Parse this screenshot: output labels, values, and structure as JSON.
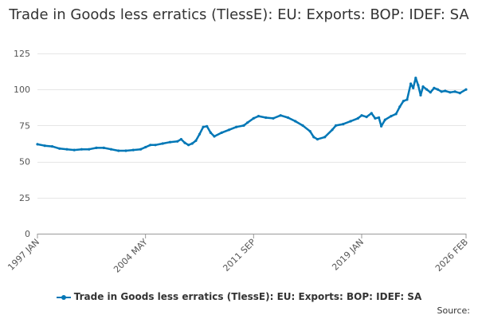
{
  "chart_data": {
    "type": "line",
    "title": "Trade in Goods less erratics (TlessE): EU: Exports: BOP: IDEF: SA",
    "xlabel": "",
    "ylabel": "",
    "x_range": [
      "1997 JAN",
      "2026 FEB"
    ],
    "x_ticks": [
      "1997 JAN",
      "2004 MAY",
      "2011 SEP",
      "2019 JAN",
      "2026 FEB"
    ],
    "ylim": [
      0,
      125
    ],
    "y_ticks": [
      "0",
      "25",
      "50",
      "75",
      "100",
      "125"
    ],
    "grid": true,
    "legend_position": "bottom",
    "series": [
      {
        "name": "Trade in Goods less erratics (TlessE): EU: Exports: BOP: IDEF: SA",
        "color": "#0077b6",
        "points": [
          [
            "1997-01",
            62
          ],
          [
            "1997-07",
            61
          ],
          [
            "1998-01",
            60.5
          ],
          [
            "1998-07",
            59
          ],
          [
            "1999-01",
            58.5
          ],
          [
            "1999-07",
            58
          ],
          [
            "2000-01",
            58.5
          ],
          [
            "2000-07",
            58.5
          ],
          [
            "2001-01",
            59.5
          ],
          [
            "2001-07",
            59.5
          ],
          [
            "2002-01",
            58.5
          ],
          [
            "2002-07",
            57.5
          ],
          [
            "2003-01",
            57.5
          ],
          [
            "2003-07",
            58
          ],
          [
            "2004-01",
            58.5
          ],
          [
            "2004-05",
            60
          ],
          [
            "2004-09",
            61.5
          ],
          [
            "2005-01",
            61.5
          ],
          [
            "2005-07",
            62.5
          ],
          [
            "2006-01",
            63.5
          ],
          [
            "2006-07",
            64
          ],
          [
            "2006-10",
            65.5
          ],
          [
            "2007-01",
            63
          ],
          [
            "2007-04",
            61.5
          ],
          [
            "2007-07",
            62.5
          ],
          [
            "2007-10",
            64.5
          ],
          [
            "2008-01",
            69
          ],
          [
            "2008-04",
            74
          ],
          [
            "2008-07",
            74.5
          ],
          [
            "2008-10",
            70
          ],
          [
            "2009-01",
            67.5
          ],
          [
            "2009-07",
            70
          ],
          [
            "2010-01",
            72
          ],
          [
            "2010-07",
            74
          ],
          [
            "2011-01",
            75
          ],
          [
            "2011-04",
            77
          ],
          [
            "2011-09",
            80
          ],
          [
            "2012-01",
            81.5
          ],
          [
            "2012-07",
            80.5
          ],
          [
            "2013-01",
            80
          ],
          [
            "2013-07",
            82
          ],
          [
            "2014-01",
            80.5
          ],
          [
            "2014-07",
            78
          ],
          [
            "2015-01",
            75
          ],
          [
            "2015-07",
            71
          ],
          [
            "2015-10",
            67
          ],
          [
            "2016-01",
            65.5
          ],
          [
            "2016-07",
            67
          ],
          [
            "2017-01",
            72
          ],
          [
            "2017-04",
            75
          ],
          [
            "2017-10",
            76
          ],
          [
            "2018-04",
            78
          ],
          [
            "2018-10",
            80
          ],
          [
            "2019-01",
            82
          ],
          [
            "2019-05",
            81
          ],
          [
            "2019-09",
            83.5
          ],
          [
            "2019-12",
            80
          ],
          [
            "2020-03",
            80.5
          ],
          [
            "2020-05",
            74.5
          ],
          [
            "2020-08",
            79
          ],
          [
            "2021-01",
            81.5
          ],
          [
            "2021-05",
            83
          ],
          [
            "2021-08",
            88
          ],
          [
            "2021-11",
            92
          ],
          [
            "2022-02",
            93
          ],
          [
            "2022-05",
            104
          ],
          [
            "2022-07",
            101
          ],
          [
            "2022-09",
            108
          ],
          [
            "2022-11",
            103
          ],
          [
            "2023-01",
            96
          ],
          [
            "2023-03",
            102
          ],
          [
            "2023-06",
            100
          ],
          [
            "2023-09",
            98
          ],
          [
            "2023-12",
            101
          ],
          [
            "2024-03",
            100
          ],
          [
            "2024-06",
            98.5
          ],
          [
            "2024-09",
            99
          ],
          [
            "2025-01",
            98
          ],
          [
            "2025-05",
            98.5
          ],
          [
            "2025-09",
            97.5
          ],
          [
            "2026-02",
            100
          ]
        ]
      }
    ]
  },
  "legend_label": "Trade in Goods less erratics (TlessE): EU: Exports: BOP: IDEF: SA",
  "source_label": "Source:"
}
